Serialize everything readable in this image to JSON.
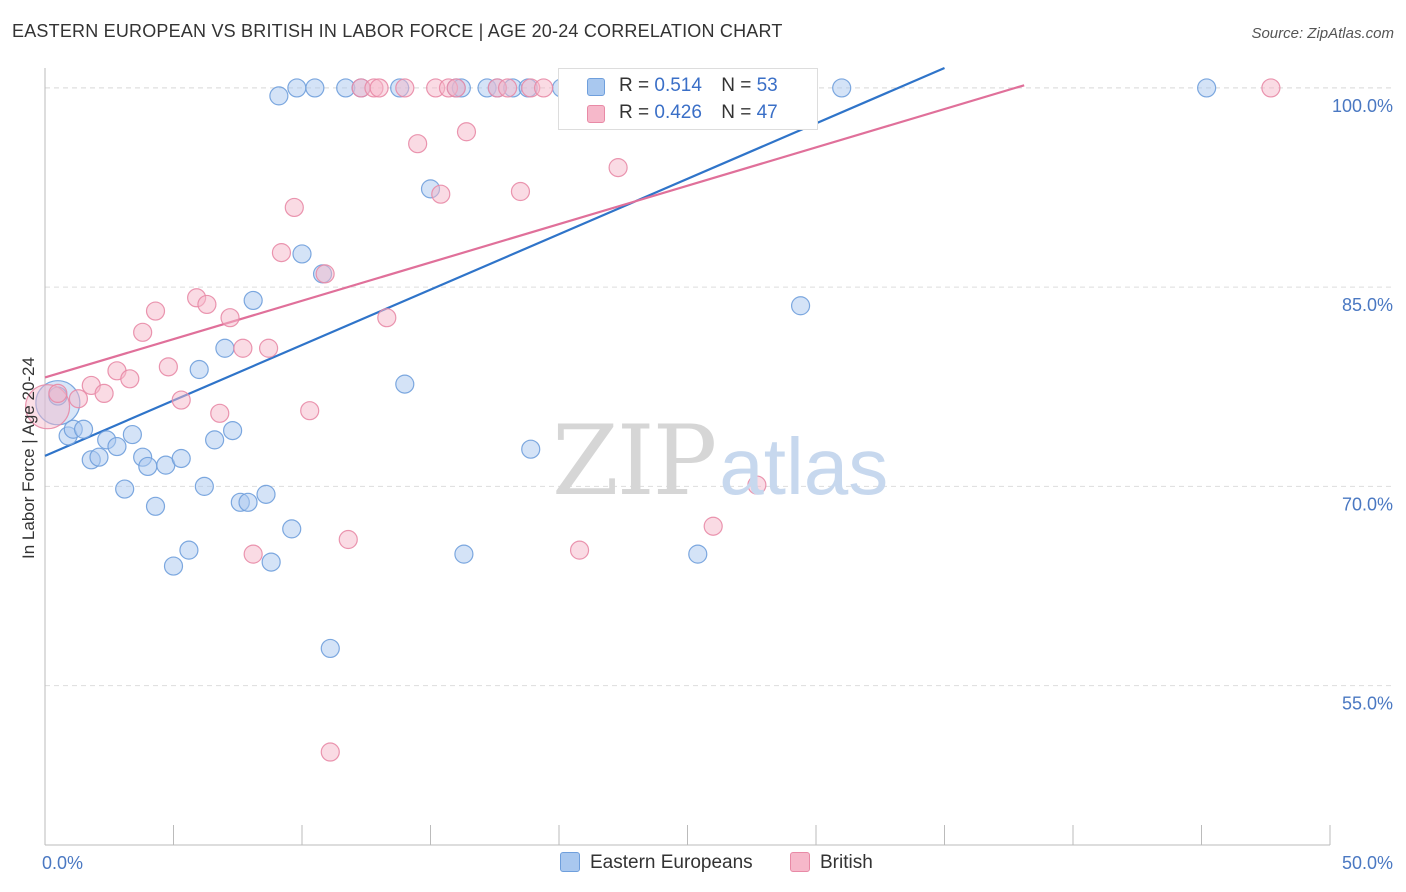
{
  "title": "EASTERN EUROPEAN VS BRITISH IN LABOR FORCE | AGE 20-24 CORRELATION CHART",
  "source": "Source: ZipAtlas.com",
  "watermark": {
    "zip": "ZIP",
    "atlas": "atlas"
  },
  "legend_top": {
    "rows": [
      {
        "r_label": "R =",
        "r_value": "0.514",
        "n_label": "N =",
        "n_value": "53"
      },
      {
        "r_label": "R =",
        "r_value": "0.426",
        "n_label": "N =",
        "n_value": "47"
      }
    ]
  },
  "legend_bottom": {
    "items": [
      "Eastern Europeans",
      "British"
    ]
  },
  "colors": {
    "blue_fill": "#a9c8ef",
    "blue_stroke": "#6f9fdc",
    "blue_line": "#2f74c9",
    "pink_fill": "#f6b8ca",
    "pink_stroke": "#e88aa6",
    "pink_line": "#e0709a",
    "tick_text": "#4a78c2",
    "grid": "#dddddd"
  },
  "chart_data": {
    "type": "scatter",
    "title": "EASTERN EUROPEAN VS BRITISH IN LABOR FORCE | AGE 20-24 CORRELATION CHART",
    "xlabel": "",
    "ylabel": "In Labor Force | Age 20-24",
    "xlim": [
      0,
      50
    ],
    "ylim": [
      43,
      101.5
    ],
    "x_tick_labels": [
      {
        "value": 0,
        "label": "0.0%"
      },
      {
        "value": 50,
        "label": "50.0%"
      }
    ],
    "y_tick_labels": [
      {
        "value": 100,
        "label": "100.0%"
      },
      {
        "value": 85,
        "label": "85.0%"
      },
      {
        "value": 70,
        "label": "70.0%"
      },
      {
        "value": 55,
        "label": "55.0%"
      }
    ],
    "x_minor_ticks": [
      0,
      5,
      10,
      15,
      20,
      25,
      30,
      35,
      40,
      45,
      50
    ],
    "grid": true,
    "legend": "top-center",
    "series": [
      {
        "name": "Eastern Europeans",
        "color": "blue",
        "r": 0.514,
        "n": 53,
        "trend": {
          "x": [
            0,
            35
          ],
          "y": [
            72.3,
            101.5
          ]
        },
        "points": [
          {
            "x": 0.5,
            "y": 76.3,
            "big": true
          },
          {
            "x": 0.5,
            "y": 76.8
          },
          {
            "x": 0.9,
            "y": 73.8
          },
          {
            "x": 1.1,
            "y": 74.3
          },
          {
            "x": 1.5,
            "y": 74.3
          },
          {
            "x": 1.8,
            "y": 72.0
          },
          {
            "x": 2.1,
            "y": 72.2
          },
          {
            "x": 2.4,
            "y": 73.5
          },
          {
            "x": 2.8,
            "y": 73.0
          },
          {
            "x": 3.1,
            "y": 69.8
          },
          {
            "x": 3.4,
            "y": 73.9
          },
          {
            "x": 3.8,
            "y": 72.2
          },
          {
            "x": 4.0,
            "y": 71.5
          },
          {
            "x": 4.3,
            "y": 68.5
          },
          {
            "x": 4.7,
            "y": 71.6
          },
          {
            "x": 5.0,
            "y": 64.0
          },
          {
            "x": 5.3,
            "y": 72.1
          },
          {
            "x": 5.6,
            "y": 65.2
          },
          {
            "x": 6.0,
            "y": 78.8
          },
          {
            "x": 6.2,
            "y": 70.0
          },
          {
            "x": 6.6,
            "y": 73.5
          },
          {
            "x": 7.0,
            "y": 80.4
          },
          {
            "x": 7.3,
            "y": 74.2
          },
          {
            "x": 7.6,
            "y": 68.8
          },
          {
            "x": 7.9,
            "y": 68.8
          },
          {
            "x": 8.1,
            "y": 84.0
          },
          {
            "x": 8.6,
            "y": 69.4
          },
          {
            "x": 8.8,
            "y": 64.3
          },
          {
            "x": 9.1,
            "y": 99.4
          },
          {
            "x": 9.6,
            "y": 66.8
          },
          {
            "x": 9.8,
            "y": 100
          },
          {
            "x": 10.0,
            "y": 87.5
          },
          {
            "x": 10.5,
            "y": 100
          },
          {
            "x": 10.8,
            "y": 86.0
          },
          {
            "x": 11.1,
            "y": 57.8
          },
          {
            "x": 11.7,
            "y": 100
          },
          {
            "x": 12.3,
            "y": 100
          },
          {
            "x": 13.8,
            "y": 100
          },
          {
            "x": 14.0,
            "y": 77.7
          },
          {
            "x": 15.0,
            "y": 92.4
          },
          {
            "x": 16.0,
            "y": 100
          },
          {
            "x": 16.2,
            "y": 100
          },
          {
            "x": 16.3,
            "y": 64.9
          },
          {
            "x": 17.2,
            "y": 100
          },
          {
            "x": 17.6,
            "y": 100
          },
          {
            "x": 18.2,
            "y": 100
          },
          {
            "x": 18.8,
            "y": 100
          },
          {
            "x": 18.9,
            "y": 72.8
          },
          {
            "x": 20.1,
            "y": 100
          },
          {
            "x": 25.4,
            "y": 64.9
          },
          {
            "x": 29.4,
            "y": 83.6
          },
          {
            "x": 31.0,
            "y": 100
          },
          {
            "x": 45.2,
            "y": 100
          }
        ]
      },
      {
        "name": "British",
        "color": "pink",
        "r": 0.426,
        "n": 47,
        "trend": {
          "x": [
            0,
            38.1
          ],
          "y": [
            78.2,
            100.2
          ]
        },
        "points": [
          {
            "x": 0.1,
            "y": 76.0,
            "big": true
          },
          {
            "x": 0.5,
            "y": 77.0
          },
          {
            "x": 1.3,
            "y": 76.6
          },
          {
            "x": 1.8,
            "y": 77.6
          },
          {
            "x": 2.3,
            "y": 77.0
          },
          {
            "x": 2.8,
            "y": 78.7
          },
          {
            "x": 3.3,
            "y": 78.1
          },
          {
            "x": 3.8,
            "y": 81.6
          },
          {
            "x": 4.3,
            "y": 83.2
          },
          {
            "x": 4.8,
            "y": 79.0
          },
          {
            "x": 5.3,
            "y": 76.5
          },
          {
            "x": 5.9,
            "y": 84.2
          },
          {
            "x": 6.3,
            "y": 83.7
          },
          {
            "x": 6.8,
            "y": 75.5
          },
          {
            "x": 7.2,
            "y": 82.7
          },
          {
            "x": 7.7,
            "y": 80.4
          },
          {
            "x": 8.1,
            "y": 64.9
          },
          {
            "x": 8.7,
            "y": 80.4
          },
          {
            "x": 9.2,
            "y": 87.6
          },
          {
            "x": 9.7,
            "y": 91.0
          },
          {
            "x": 10.3,
            "y": 75.7
          },
          {
            "x": 10.9,
            "y": 86.0
          },
          {
            "x": 11.1,
            "y": 50.0
          },
          {
            "x": 11.8,
            "y": 66.0
          },
          {
            "x": 12.3,
            "y": 100
          },
          {
            "x": 12.8,
            "y": 100
          },
          {
            "x": 13.0,
            "y": 100
          },
          {
            "x": 13.3,
            "y": 82.7
          },
          {
            "x": 14.0,
            "y": 100
          },
          {
            "x": 14.5,
            "y": 95.8
          },
          {
            "x": 15.2,
            "y": 100
          },
          {
            "x": 15.4,
            "y": 92.0
          },
          {
            "x": 15.7,
            "y": 100
          },
          {
            "x": 16.0,
            "y": 100
          },
          {
            "x": 16.4,
            "y": 96.7
          },
          {
            "x": 17.6,
            "y": 100
          },
          {
            "x": 18.0,
            "y": 100
          },
          {
            "x": 18.5,
            "y": 92.2
          },
          {
            "x": 18.9,
            "y": 100
          },
          {
            "x": 19.4,
            "y": 100
          },
          {
            "x": 20.4,
            "y": 100
          },
          {
            "x": 20.8,
            "y": 65.2
          },
          {
            "x": 22.3,
            "y": 94.0
          },
          {
            "x": 23.1,
            "y": 100
          },
          {
            "x": 26.0,
            "y": 67.0
          },
          {
            "x": 27.7,
            "y": 70.1
          },
          {
            "x": 47.7,
            "y": 100
          }
        ]
      }
    ]
  }
}
